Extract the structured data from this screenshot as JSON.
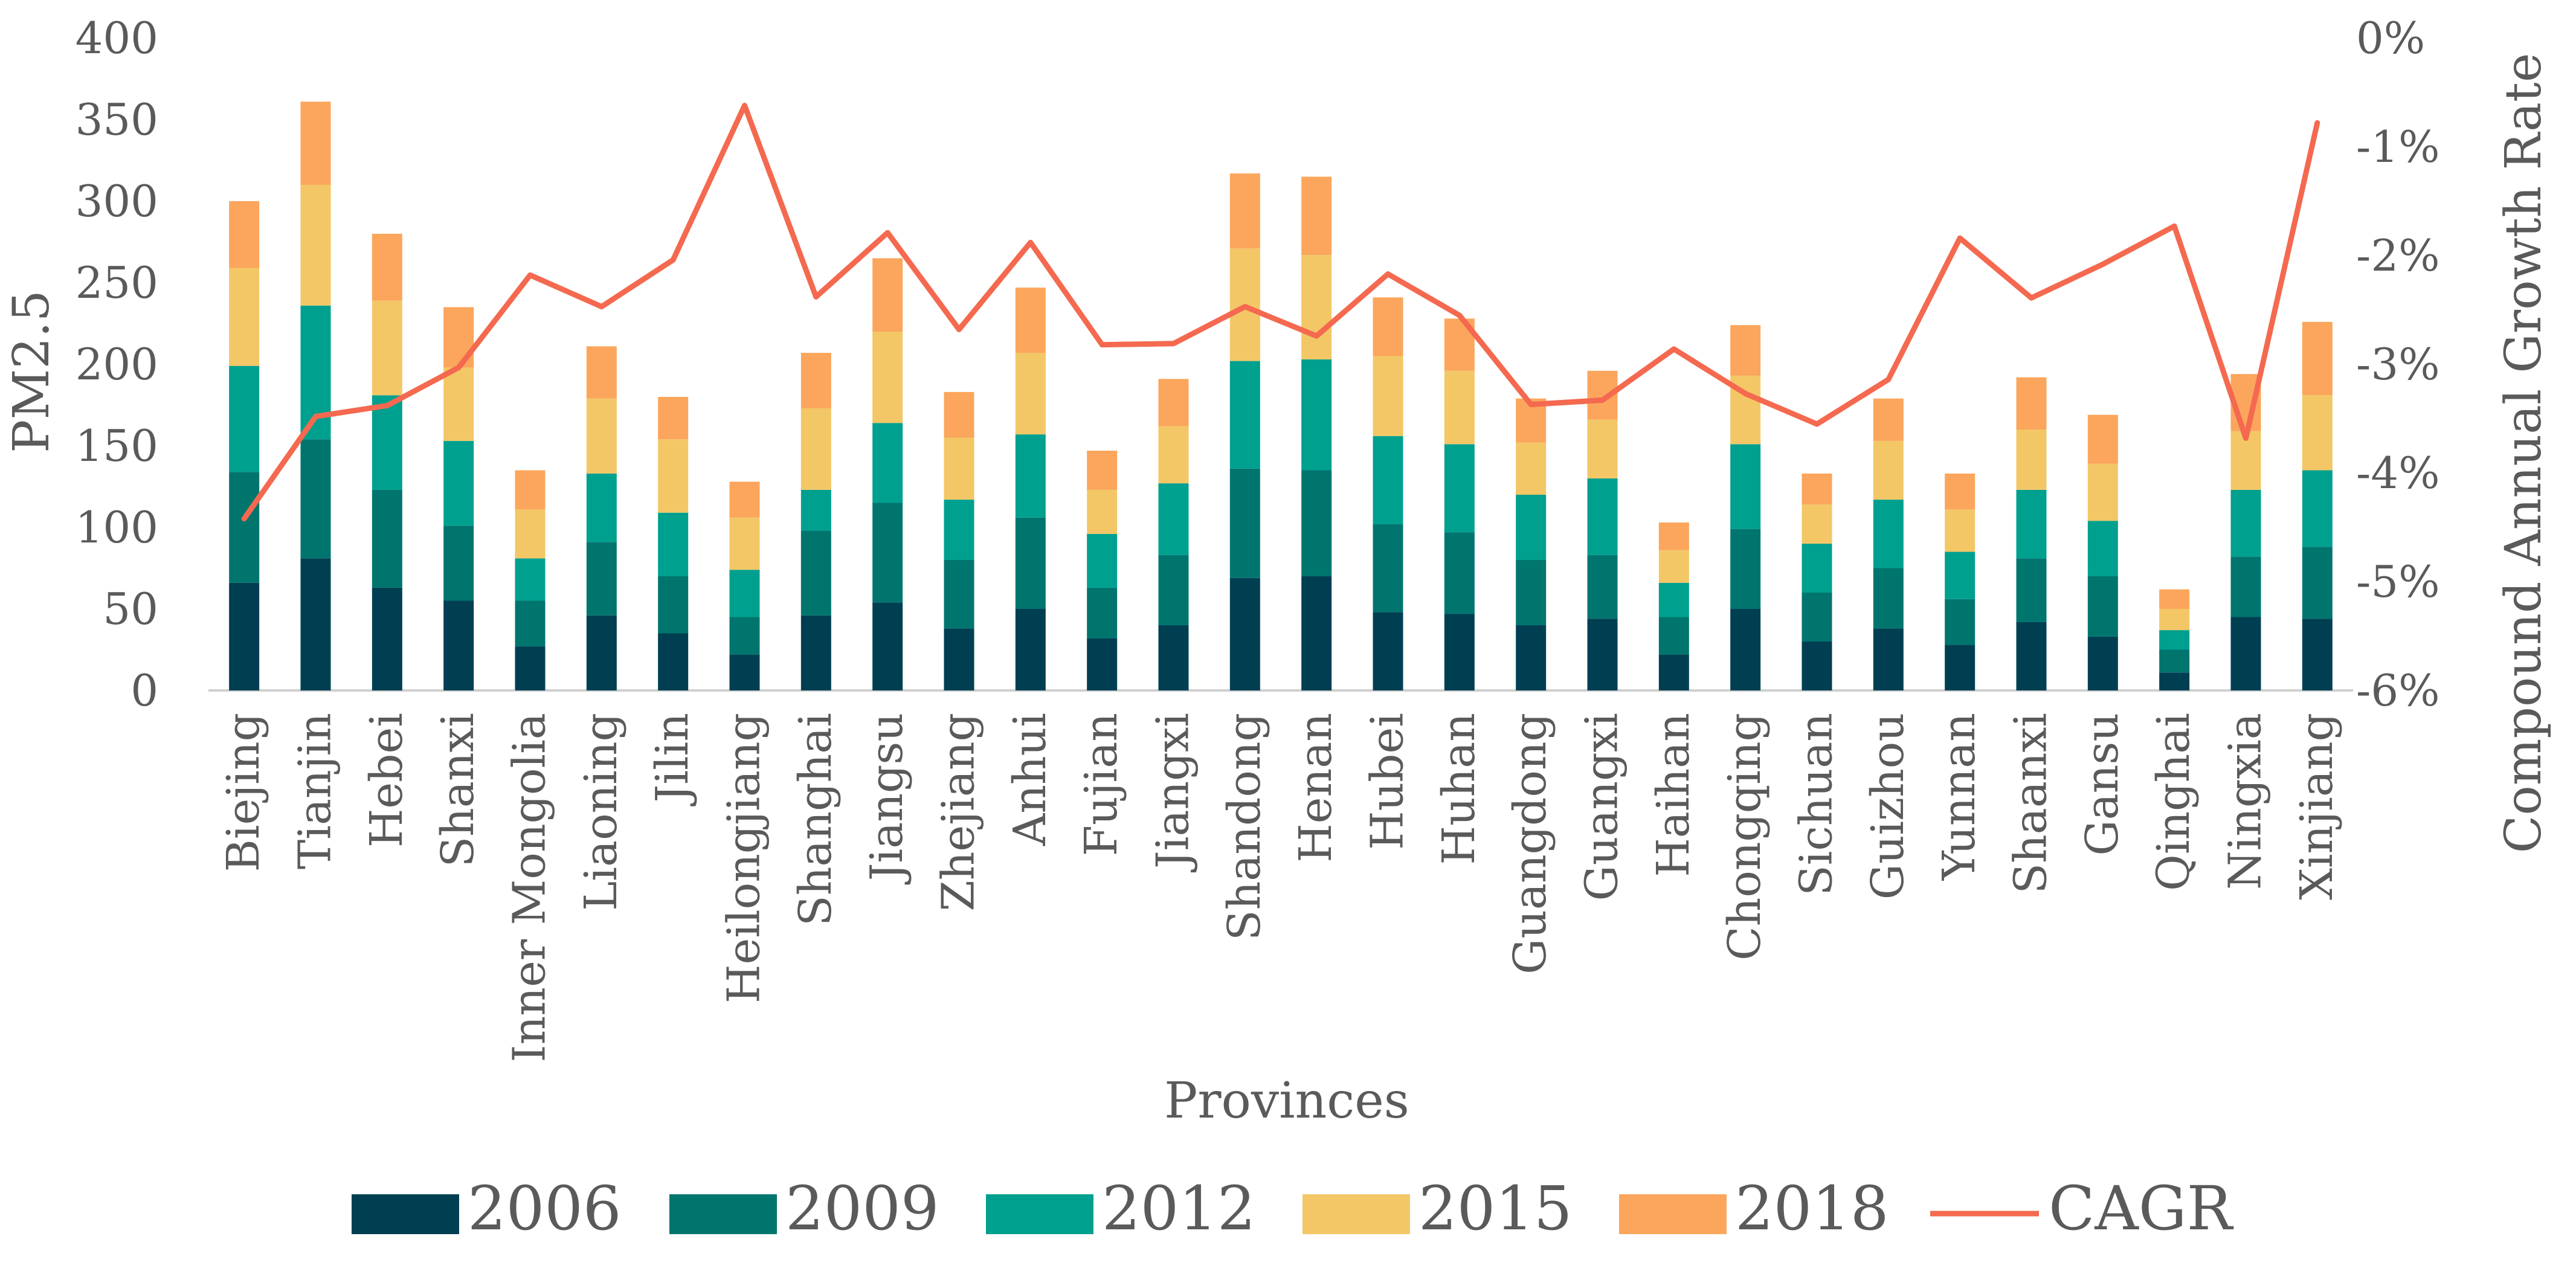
{
  "chart_data": {
    "type": "bar",
    "stacked": true,
    "title": "",
    "xlabel": "Provinces",
    "ylabel": "PM2.5",
    "y2label": "Compound Annual Growth Rate",
    "ylim": [
      0,
      400
    ],
    "y2lim": [
      -6,
      0
    ],
    "yticks": [
      "0",
      "50",
      "100",
      "150",
      "200",
      "250",
      "300",
      "350",
      "400"
    ],
    "y2ticks": [
      "-6%",
      "-5%",
      "-4%",
      "-3%",
      "-2%",
      "-1%",
      "0%"
    ],
    "categories": [
      "Biejing",
      "Tianjin",
      "Hebei",
      "Shanxi",
      "Inner Mongolia",
      "Liaoning",
      "Jilin",
      "Heilongjiang",
      "Shanghai",
      "Jiangsu",
      "Zhejiang",
      "Anhui",
      "Fujian",
      "Jiangxi",
      "Shandong",
      "Henan",
      "Hubei",
      "Huhan",
      "Guangdong",
      "Guangxi",
      "Haihan",
      "Chongqing",
      "Sichuan",
      "Guizhou",
      "Yunnan",
      "Shaanxi",
      "Gansu",
      "Qinghai",
      "Ningxia",
      "Xinjiang"
    ],
    "series": [
      {
        "name": "2006",
        "color": "#003f52",
        "values": [
          66,
          81,
          63,
          55,
          27,
          46,
          35,
          22,
          46,
          54,
          38,
          50,
          32,
          40,
          69,
          70,
          48,
          47,
          40,
          44,
          22,
          50,
          30,
          38,
          28,
          42,
          33,
          11,
          45,
          44
        ]
      },
      {
        "name": "2009",
        "color": "#00756e",
        "values": [
          68,
          73,
          60,
          46,
          28,
          45,
          35,
          23,
          52,
          61,
          42,
          56,
          31,
          43,
          67,
          65,
          54,
          50,
          40,
          39,
          23,
          49,
          30,
          37,
          28,
          39,
          37,
          14,
          37,
          44
        ]
      },
      {
        "name": "2012",
        "color": "#00a08f",
        "values": [
          65,
          82,
          58,
          52,
          26,
          42,
          39,
          29,
          25,
          49,
          37,
          51,
          33,
          44,
          66,
          68,
          54,
          54,
          40,
          47,
          21,
          52,
          30,
          42,
          29,
          42,
          34,
          12,
          41,
          47
        ]
      },
      {
        "name": "2015",
        "color": "#f3c766",
        "values": [
          60,
          74,
          58,
          45,
          30,
          46,
          45,
          32,
          50,
          56,
          38,
          50,
          27,
          35,
          69,
          64,
          49,
          45,
          32,
          36,
          20,
          42,
          24,
          36,
          26,
          37,
          35,
          13,
          36,
          46
        ]
      },
      {
        "name": "2018",
        "color": "#fba65c",
        "values": [
          41,
          51,
          41,
          37,
          24,
          32,
          26,
          22,
          34,
          45,
          28,
          40,
          24,
          29,
          46,
          48,
          36,
          32,
          27,
          30,
          17,
          31,
          19,
          26,
          22,
          32,
          30,
          12,
          35,
          45
        ]
      }
    ],
    "line_series": {
      "name": "CAGR",
      "color": "#f4694f",
      "axis": "right",
      "unit": "%",
      "values": [
        -4.42,
        -3.48,
        -3.38,
        -3.03,
        -2.18,
        -2.47,
        -2.04,
        -0.62,
        -2.38,
        -1.79,
        -2.68,
        -1.88,
        -2.82,
        -2.81,
        -2.47,
        -2.74,
        -2.17,
        -2.55,
        -3.37,
        -3.33,
        -2.86,
        -3.27,
        -3.55,
        -3.14,
        -1.84,
        -2.39,
        -2.08,
        -1.73,
        -3.68,
        -0.78
      ]
    },
    "legend": {
      "position": "bottom",
      "items": [
        "2006",
        "2009",
        "2012",
        "2015",
        "2018",
        "CAGR"
      ]
    },
    "grid": false
  }
}
